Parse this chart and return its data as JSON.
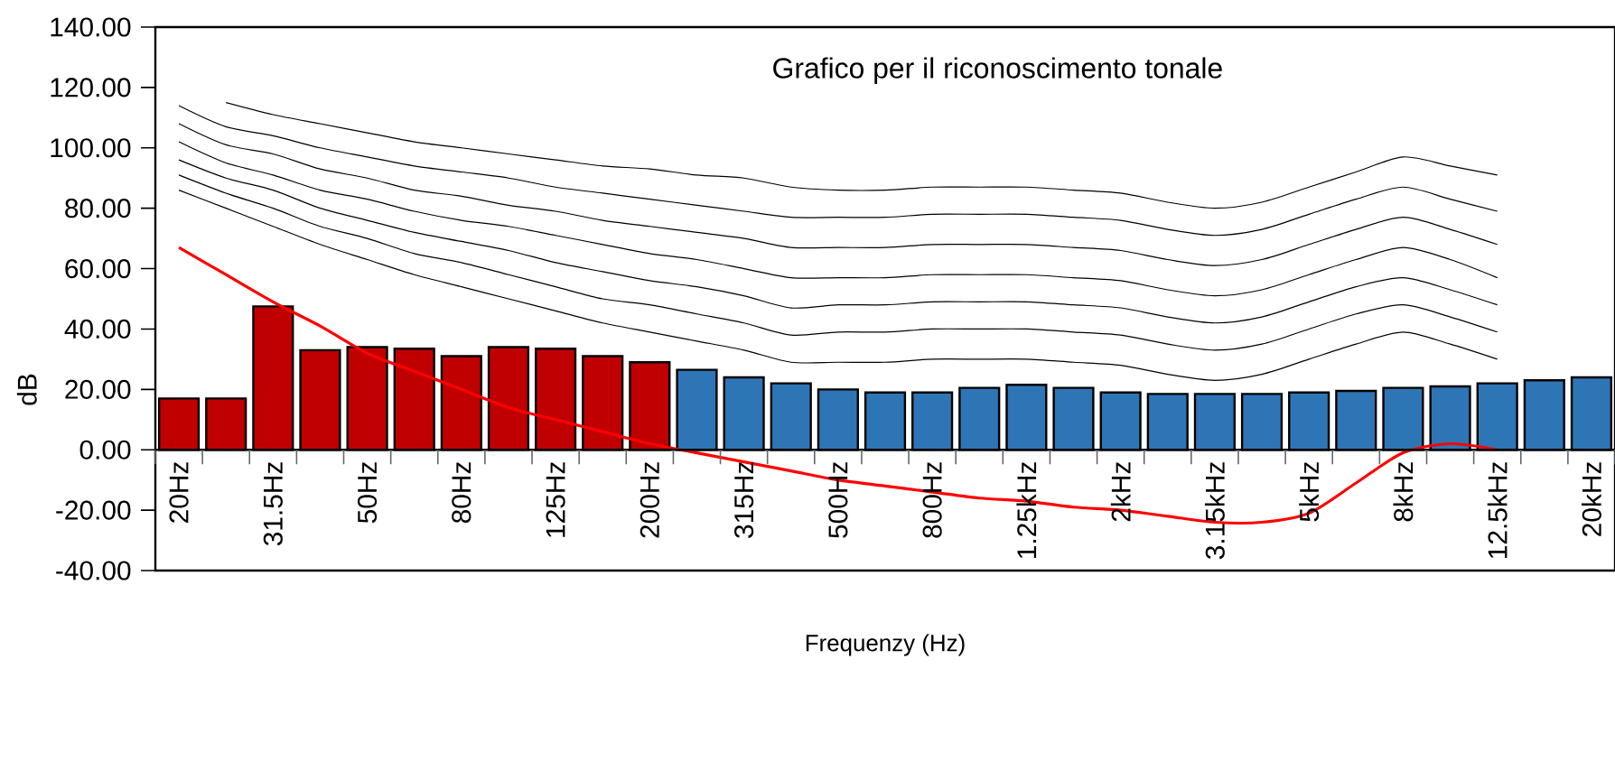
{
  "chart_data": {
    "type": "bar",
    "title": "Grafico per il riconoscimento tonale",
    "xlabel": "Frequenzy (Hz)",
    "ylabel": "dB",
    "categories": [
      "20Hz",
      null,
      "31.5Hz",
      null,
      "50Hz",
      null,
      "80Hz",
      null,
      "125Hz",
      null,
      "200Hz",
      null,
      "315Hz",
      null,
      "500Hz",
      null,
      "800Hz",
      null,
      "1.25kHz",
      null,
      "2kHz",
      null,
      "3.15kHz",
      null,
      "5kHz",
      null,
      "8kHz",
      null,
      "12.5kHz",
      null,
      "20kHz"
    ],
    "ylim": [
      -40,
      140
    ],
    "yticks": [
      {
        "value": -40,
        "label": "-40.00"
      },
      {
        "value": -20,
        "label": "-20.00"
      },
      {
        "value": 0,
        "label": "0.00"
      },
      {
        "value": 20,
        "label": "20.00"
      },
      {
        "value": 40,
        "label": "40.00"
      },
      {
        "value": 60,
        "label": "60.00"
      },
      {
        "value": 80,
        "label": "80.00"
      },
      {
        "value": 100,
        "label": "100.00"
      },
      {
        "value": 120,
        "label": "120.00"
      },
      {
        "value": 140,
        "label": "140.00"
      }
    ],
    "series": [
      {
        "colors": [
          "#c00000",
          "#c00000",
          "#c00000",
          "#c00000",
          "#c00000",
          "#c00000",
          "#c00000",
          "#c00000",
          "#c00000",
          "#c00000",
          "#c00000",
          "#2e75b6",
          "#2e75b6",
          "#2e75b6",
          "#2e75b6",
          "#2e75b6",
          "#2e75b6",
          "#2e75b6",
          "#2e75b6",
          "#2e75b6",
          "#2e75b6",
          "#2e75b6",
          "#2e75b6",
          "#2e75b6",
          "#2e75b6",
          "#2e75b6",
          "#2e75b6",
          "#2e75b6",
          "#2e75b6",
          "#2e75b6",
          "#2e75b6"
        ],
        "values": [
          17,
          17,
          47.5,
          33,
          34,
          33.5,
          31,
          34,
          33.5,
          31,
          29,
          26.5,
          24,
          22,
          20,
          19,
          19,
          20.5,
          21.5,
          20.5,
          19,
          18.5,
          18.5,
          18.5,
          19,
          19.5,
          20.5,
          21,
          22,
          23,
          24
        ]
      },
      {
        "type": "line",
        "color": "#ff0000",
        "values": [
          67,
          58,
          49,
          41,
          32,
          26,
          20,
          14,
          10,
          6,
          2,
          -1,
          -4,
          -7,
          -10,
          -12,
          -14,
          -16,
          -17,
          -19,
          -20,
          -22,
          -24,
          -24,
          -21,
          -11,
          -1,
          2,
          0,
          null,
          null
        ]
      },
      {
        "type": "line",
        "color": "#000000",
        "values": [
          86,
          80,
          74,
          68,
          63,
          58,
          54,
          50,
          46,
          42,
          39,
          36,
          33,
          29,
          29,
          29,
          30,
          30,
          30,
          29,
          28,
          25,
          23,
          25,
          30,
          35,
          39,
          35,
          30,
          null,
          null
        ]
      },
      {
        "type": "line",
        "color": "#000000",
        "values": [
          91,
          85,
          80,
          74,
          70,
          65,
          62,
          58,
          54,
          50,
          48,
          45,
          42,
          38,
          39,
          39,
          40,
          40,
          40,
          39,
          38,
          35,
          33,
          35,
          40,
          45,
          48,
          44,
          39,
          null,
          null
        ]
      },
      {
        "type": "line",
        "color": "#000000",
        "values": [
          96,
          90,
          86,
          80,
          76,
          72,
          69,
          66,
          62,
          59,
          56,
          54,
          51,
          47,
          48,
          48,
          49,
          49,
          49,
          48,
          47,
          44,
          42,
          44,
          49,
          54,
          57,
          53,
          48,
          null,
          null
        ]
      },
      {
        "type": "line",
        "color": "#000000",
        "values": [
          102,
          95,
          91,
          86,
          83,
          79,
          76,
          74,
          71,
          68,
          65,
          63,
          60,
          57,
          57,
          57,
          58,
          58,
          58,
          57,
          56,
          53,
          51,
          53,
          58,
          63,
          67,
          63,
          57,
          null,
          null
        ]
      },
      {
        "type": "line",
        "color": "#000000",
        "values": [
          108,
          101,
          98,
          93,
          90,
          86,
          84,
          81,
          79,
          76,
          74,
          72,
          70,
          67,
          67,
          67,
          68,
          68,
          68,
          67,
          66,
          63,
          61,
          63,
          68,
          73,
          77,
          73,
          68,
          null,
          null
        ]
      },
      {
        "type": "line",
        "color": "#000000",
        "values": [
          114,
          107,
          104,
          100,
          97,
          94,
          92,
          90,
          87,
          85,
          83,
          81,
          79,
          77,
          77,
          77,
          78,
          78,
          78,
          77,
          76,
          73,
          71,
          73,
          78,
          83,
          87,
          83,
          79,
          null,
          null
        ]
      },
      {
        "type": "line",
        "color": "#000000",
        "values": [
          null,
          115,
          111,
          108,
          105,
          102,
          100,
          98,
          96,
          94,
          93,
          91,
          90,
          87,
          86,
          86,
          87,
          87,
          87,
          86,
          85,
          82,
          80,
          82,
          87,
          92,
          97,
          94,
          91,
          null,
          null
        ]
      }
    ]
  }
}
